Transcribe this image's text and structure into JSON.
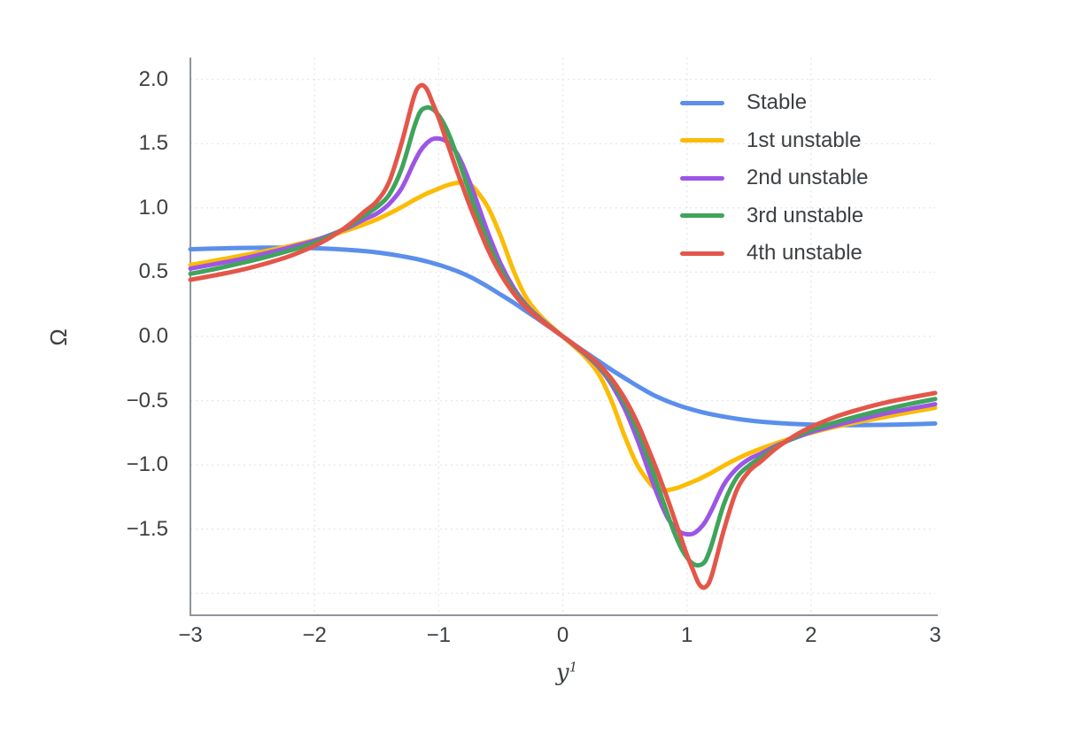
{
  "chart_data": {
    "type": "line",
    "title": "",
    "ylabel": "Ω",
    "xlabel_base": "y",
    "xlabel_sup": "1",
    "grid": true,
    "legend_position": "top-right",
    "colors": {
      "grid": "#e8e8e8",
      "spine": "#90949a",
      "tick_text": "#3c4043",
      "legend_text": "#3c4043"
    },
    "x_axis": {
      "range": [
        -3,
        3
      ],
      "tick_values": [
        -3,
        -2,
        -1,
        0,
        1,
        2,
        3
      ],
      "tick_labels": [
        "−3",
        "−2",
        "−1",
        "0",
        "1",
        "2",
        "3"
      ],
      "gridline_values": [
        -2,
        -1,
        0,
        1,
        2
      ]
    },
    "y_axis": {
      "range": [
        -2.17,
        2.17
      ],
      "tick_values": [
        2.0,
        1.5,
        1.0,
        0.5,
        0.0,
        -0.5,
        -1.0,
        -1.5
      ],
      "tick_labels": [
        "2.0",
        "1.5",
        "1.0",
        "0.5",
        "0.0",
        "−0.5",
        "−1.0",
        "−1.5"
      ],
      "gridline_values": [
        2.0,
        1.5,
        1.0,
        0.5,
        0.0,
        -0.5,
        -1.0,
        -1.5,
        -2.0
      ]
    },
    "x": [
      -3,
      -2.8,
      -2.6,
      -2.4,
      -2.2,
      -2,
      -1.9,
      -1.8,
      -1.7,
      -1.6,
      -1.5,
      -1.4,
      -1.3,
      -1.2,
      -1.15,
      -1.1,
      -1.05,
      -1,
      -0.95,
      -0.9,
      -0.85,
      -0.8,
      -0.75,
      -0.7,
      -0.6,
      -0.5,
      -0.4,
      -0.3,
      -0.2,
      -0.1,
      0,
      0.1,
      0.2,
      0.3,
      0.4,
      0.5,
      0.6,
      0.7,
      0.75,
      0.8,
      0.85,
      0.9,
      0.95,
      1,
      1.05,
      1.1,
      1.15,
      1.2,
      1.3,
      1.4,
      1.5,
      1.6,
      1.7,
      1.8,
      1.9,
      2,
      2.2,
      2.4,
      2.6,
      2.8,
      3
    ],
    "series": [
      {
        "name": "Stable",
        "color": "#5b8feb",
        "values": [
          0.678,
          0.684,
          0.688,
          0.69,
          0.69,
          0.686,
          0.683,
          0.678,
          0.672,
          0.664,
          0.654,
          0.641,
          0.625,
          0.607,
          0.596,
          0.584,
          0.571,
          0.557,
          0.542,
          0.525,
          0.507,
          0.487,
          0.465,
          0.44,
          0.385,
          0.325,
          0.265,
          0.2,
          0.135,
          0.068,
          0,
          -0.068,
          -0.135,
          -0.2,
          -0.265,
          -0.325,
          -0.385,
          -0.44,
          -0.465,
          -0.487,
          -0.507,
          -0.525,
          -0.542,
          -0.557,
          -0.571,
          -0.584,
          -0.596,
          -0.607,
          -0.625,
          -0.641,
          -0.654,
          -0.664,
          -0.672,
          -0.678,
          -0.683,
          -0.686,
          -0.69,
          -0.69,
          -0.688,
          -0.684,
          -0.678
        ]
      },
      {
        "name": "1st unstable",
        "color": "#fbbc05",
        "values": [
          0.556,
          0.59,
          0.626,
          0.663,
          0.703,
          0.75,
          0.777,
          0.806,
          0.838,
          0.872,
          0.91,
          0.955,
          1.005,
          1.06,
          1.085,
          1.11,
          1.13,
          1.15,
          1.17,
          1.185,
          1.195,
          1.2,
          1.185,
          1.14,
          1.0,
          0.78,
          0.52,
          0.31,
          0.18,
          0.085,
          0,
          -0.085,
          -0.18,
          -0.31,
          -0.52,
          -0.78,
          -1.0,
          -1.14,
          -1.185,
          -1.2,
          -1.195,
          -1.185,
          -1.17,
          -1.15,
          -1.13,
          -1.11,
          -1.085,
          -1.06,
          -1.005,
          -0.955,
          -0.91,
          -0.872,
          -0.838,
          -0.806,
          -0.777,
          -0.75,
          -0.703,
          -0.663,
          -0.626,
          -0.59,
          -0.556
        ]
      },
      {
        "name": "2nd unstable",
        "color": "#9d55e6",
        "values": [
          0.528,
          0.563,
          0.6,
          0.645,
          0.692,
          0.745,
          0.78,
          0.818,
          0.86,
          0.91,
          0.955,
          1.03,
          1.15,
          1.35,
          1.44,
          1.5,
          1.535,
          1.54,
          1.525,
          1.485,
          1.42,
          1.32,
          1.2,
          1.07,
          0.8,
          0.565,
          0.385,
          0.25,
          0.155,
          0.075,
          0,
          -0.075,
          -0.155,
          -0.25,
          -0.385,
          -0.565,
          -0.8,
          -1.07,
          -1.2,
          -1.32,
          -1.42,
          -1.485,
          -1.525,
          -1.54,
          -1.535,
          -1.5,
          -1.44,
          -1.35,
          -1.15,
          -1.03,
          -0.955,
          -0.91,
          -0.86,
          -0.818,
          -0.78,
          -0.745,
          -0.692,
          -0.645,
          -0.6,
          -0.563,
          -0.528
        ]
      },
      {
        "name": "3rd unstable",
        "color": "#3fa45c",
        "values": [
          0.487,
          0.525,
          0.568,
          0.615,
          0.668,
          0.728,
          0.77,
          0.818,
          0.873,
          0.94,
          1.005,
          1.1,
          1.3,
          1.62,
          1.745,
          1.78,
          1.77,
          1.72,
          1.64,
          1.53,
          1.4,
          1.26,
          1.12,
          0.98,
          0.73,
          0.52,
          0.36,
          0.238,
          0.148,
          0.072,
          0,
          -0.072,
          -0.148,
          -0.238,
          -0.36,
          -0.52,
          -0.73,
          -0.98,
          -1.12,
          -1.26,
          -1.4,
          -1.53,
          -1.64,
          -1.72,
          -1.77,
          -1.78,
          -1.745,
          -1.62,
          -1.3,
          -1.1,
          -1.005,
          -0.94,
          -0.873,
          -0.818,
          -0.77,
          -0.728,
          -0.668,
          -0.615,
          -0.568,
          -0.525,
          -0.487
        ]
      },
      {
        "name": "4th unstable",
        "color": "#e4564a",
        "values": [
          0.44,
          0.476,
          0.515,
          0.565,
          0.625,
          0.705,
          0.755,
          0.815,
          0.885,
          0.97,
          1.05,
          1.2,
          1.5,
          1.86,
          1.95,
          1.93,
          1.82,
          1.7,
          1.56,
          1.42,
          1.28,
          1.15,
          1.02,
          0.9,
          0.67,
          0.485,
          0.34,
          0.228,
          0.143,
          0.07,
          0,
          -0.07,
          -0.143,
          -0.228,
          -0.34,
          -0.485,
          -0.67,
          -0.9,
          -1.02,
          -1.15,
          -1.28,
          -1.42,
          -1.56,
          -1.7,
          -1.82,
          -1.93,
          -1.95,
          -1.86,
          -1.5,
          -1.2,
          -1.05,
          -0.97,
          -0.885,
          -0.815,
          -0.755,
          -0.705,
          -0.625,
          -0.565,
          -0.515,
          -0.476,
          -0.44
        ]
      }
    ]
  }
}
